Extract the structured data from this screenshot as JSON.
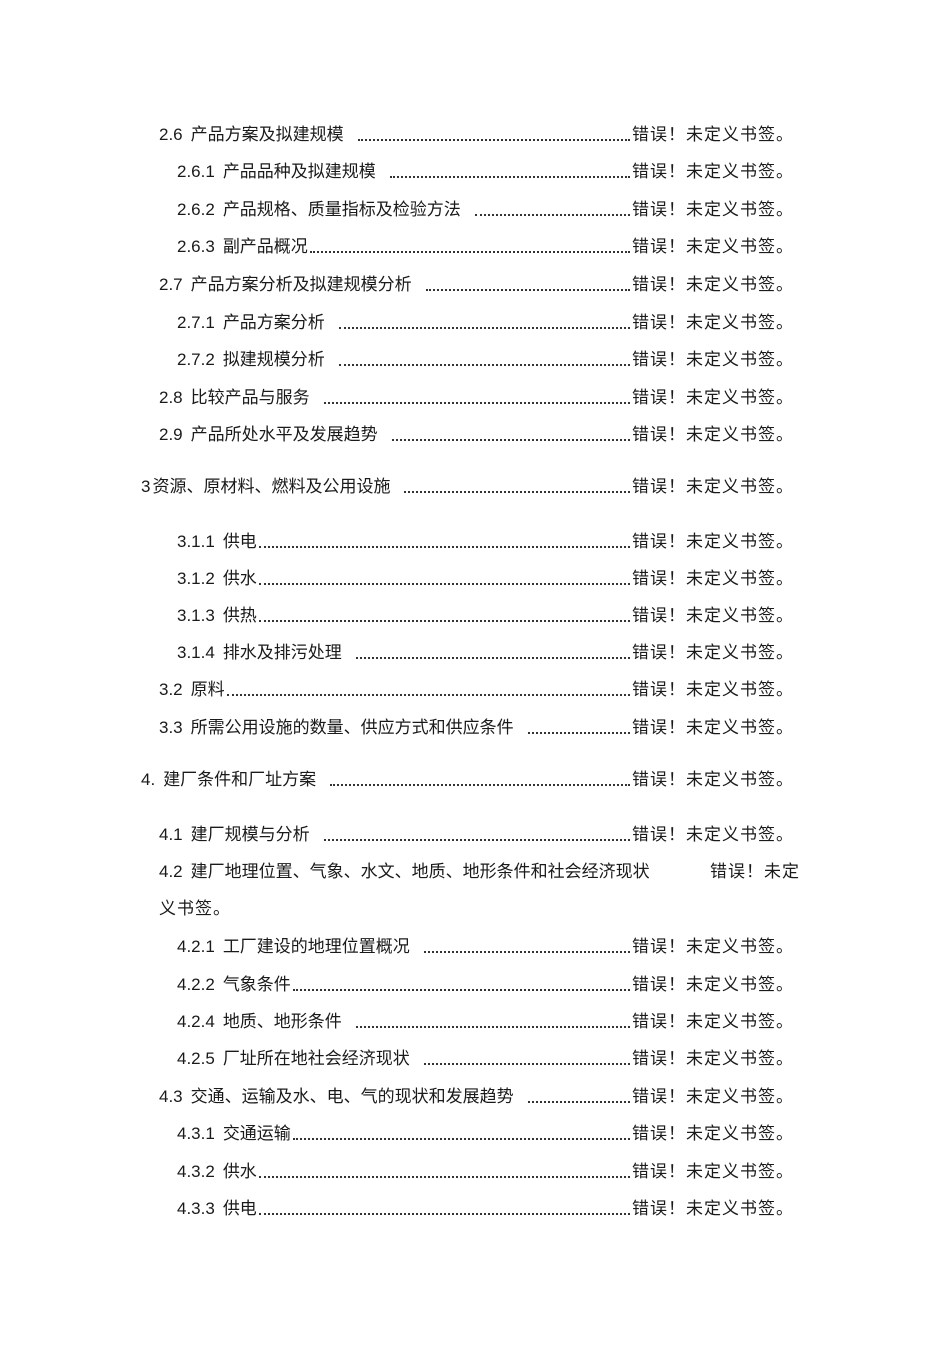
{
  "toc": [
    {
      "num": "2.6",
      "title": "产品方案及拟建规模",
      "page": "错误！未定义书签。",
      "level": 1
    },
    {
      "num": "2.6.1",
      "title": "产品品种及拟建规模",
      "page": "错误！未定义书签。",
      "level": 2
    },
    {
      "num": "2.6.2",
      "title": "产品规格、质量指标及检验方法",
      "page": "错误！未定义书签。",
      "level": 2
    },
    {
      "num": "2.6.3",
      "title": "副产品概况",
      "page": "错误！未定义书签。",
      "level": 2
    },
    {
      "num": "2.7",
      "title": "产品方案分析及拟建规模分析",
      "page": "错误！未定义书签。",
      "level": 1
    },
    {
      "num": "2.7.1",
      "title": "产品方案分析",
      "page": "错误！未定义书签。",
      "level": 2
    },
    {
      "num": "2.7.2",
      "title": "拟建规模分析",
      "page": "错误！未定义书签。",
      "level": 2
    },
    {
      "num": "2.8",
      "title": "比较产品与服务",
      "page": "错误！未定义书签。",
      "level": 1
    },
    {
      "num": "2.9",
      "title": "产品所处水平及发展趋势",
      "page": "错误！未定义书签。",
      "level": 1
    },
    {
      "num": "3",
      "title": "资源、原材料、燃料及公用设施",
      "page": "错误！未定义书签。",
      "level": 0
    },
    {
      "num": "3.1.1",
      "title": "供电",
      "page": "错误！未定义书签。",
      "level": 2
    },
    {
      "num": "3.1.2",
      "title": "供水",
      "page": "错误！未定义书签。",
      "level": 2
    },
    {
      "num": "3.1.3",
      "title": "供热",
      "page": "错误！未定义书签。",
      "level": 2
    },
    {
      "num": "3.1.4",
      "title": "排水及排污处理",
      "page": "错误！未定义书签。",
      "level": 2
    },
    {
      "num": "3.2",
      "title": "原料",
      "page": "错误！未定义书签。",
      "level": 1
    },
    {
      "num": "3.3",
      "title": "所需公用设施的数量、供应方式和供应条件",
      "page": "错误！未定义书签。",
      "level": 1
    },
    {
      "num": "4.",
      "title": "建厂条件和厂址方案",
      "page": "错误！未定义书签。",
      "level": 0
    },
    {
      "num": "4.1",
      "title": "建厂规模与分析",
      "page": "错误！未定义书签。",
      "level": 1
    },
    {
      "num": "4.2",
      "title": "建厂地理位置、气象、水文、地质、地形条件和社会经济现状",
      "page_line1": "错误！未定",
      "page_line2": "义书签。",
      "level": 1
    },
    {
      "num": "4.2.1",
      "title": "工厂建设的地理位置概况",
      "page": "错误！未定义书签。",
      "level": 2
    },
    {
      "num": "4.2.2",
      "title": "气象条件",
      "page": "错误！未定义书签。",
      "level": 2
    },
    {
      "num": "4.2.4",
      "title": "地质、地形条件",
      "page": "错误！未定义书签。",
      "level": 2
    },
    {
      "num": "4.2.5",
      "title": "厂址所在地社会经济现状",
      "page": "错误！未定义书签。",
      "level": 2
    },
    {
      "num": "4.3",
      "title": "交通、运输及水、电、气的现状和发展趋势",
      "page": "错误！未定义书签。",
      "level": 1
    },
    {
      "num": "4.3.1",
      "title": "交通运输",
      "page": "错误！未定义书签。",
      "level": 2
    },
    {
      "num": "4.3.2",
      "title": "供水",
      "page": "错误！未定义书签。",
      "level": 2
    },
    {
      "num": "4.3.3",
      "title": "供电",
      "page": "错误！未定义书签。",
      "level": 2
    }
  ]
}
